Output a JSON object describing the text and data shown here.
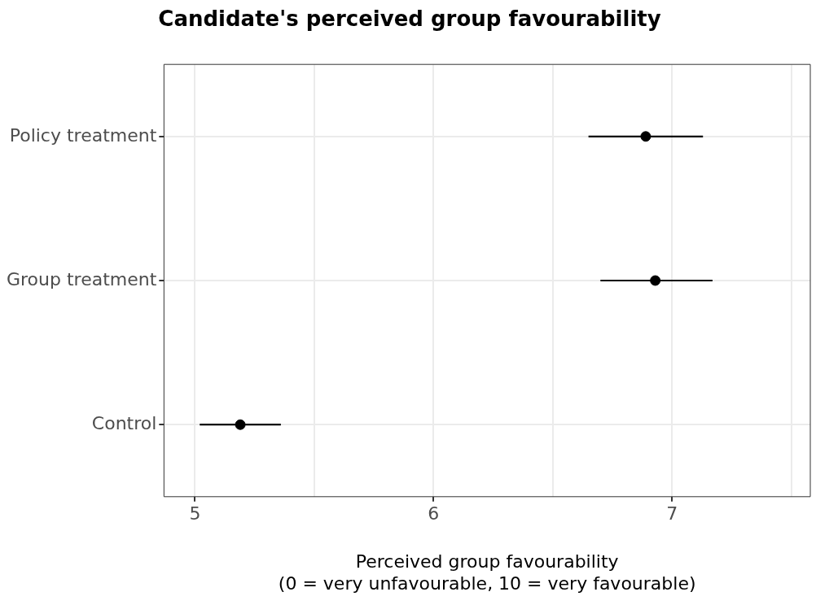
{
  "chart_data": {
    "type": "scatter",
    "orientation": "horizontal",
    "title": "Candidate's perceived group favourability",
    "xlabel": "Perceived group favourability\n(0 = very unfavourable, 10 = very favourable)",
    "categories": [
      "Policy treatment",
      "Group treatment",
      "Control"
    ],
    "values": [
      6.89,
      6.93,
      5.19
    ],
    "errors": [
      [
        6.65,
        7.13
      ],
      [
        6.7,
        7.17
      ],
      [
        5.02,
        5.36
      ]
    ],
    "color": "#000000",
    "marker": "circle",
    "xlim": [
      4.87,
      7.58
    ],
    "xticks": [
      5,
      {
        "value": 5.5,
        "label": null
      },
      6,
      {
        "value": 6.5,
        "label": null
      },
      7,
      {
        "value": 7.5,
        "label": null
      }
    ],
    "grid": true,
    "legend": false
  }
}
